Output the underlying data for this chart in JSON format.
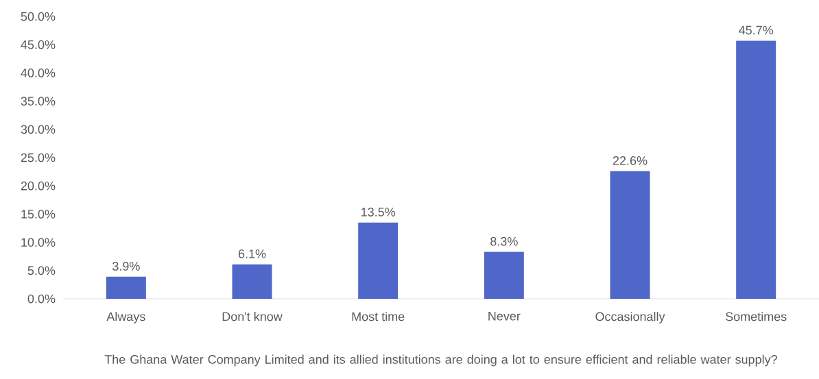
{
  "chart_data": {
    "type": "bar",
    "xlabel": "The Ghana Water Company Limited and its allied institutions are doing a lot to ensure efficient and reliable water supply?",
    "categories": [
      "Always",
      "Don't know",
      "Most time",
      "Never",
      "Occasionally",
      "Sometimes"
    ],
    "values": [
      3.9,
      6.1,
      13.5,
      8.3,
      22.6,
      45.7
    ],
    "value_labels": [
      "3.9%",
      "6.1%",
      "13.5%",
      "8.3%",
      "22.6%",
      "45.7%"
    ],
    "color": "#4f67c9",
    "ylim": [
      0,
      50
    ],
    "yticks": [
      {
        "value": 0,
        "label": "0.0%"
      },
      {
        "value": 5,
        "label": "5.0%"
      },
      {
        "value": 10,
        "label": "10.0%"
      },
      {
        "value": 15,
        "label": "15.0%"
      },
      {
        "value": 20,
        "label": "20.0%"
      },
      {
        "value": 25,
        "label": "25.0%"
      },
      {
        "value": 30,
        "label": "30.0%"
      },
      {
        "value": 35,
        "label": "35.0%"
      },
      {
        "value": 40,
        "label": "40.0%"
      },
      {
        "value": 45,
        "label": "45.0%"
      },
      {
        "value": 50,
        "label": "50.0%"
      }
    ],
    "grid": false
  }
}
